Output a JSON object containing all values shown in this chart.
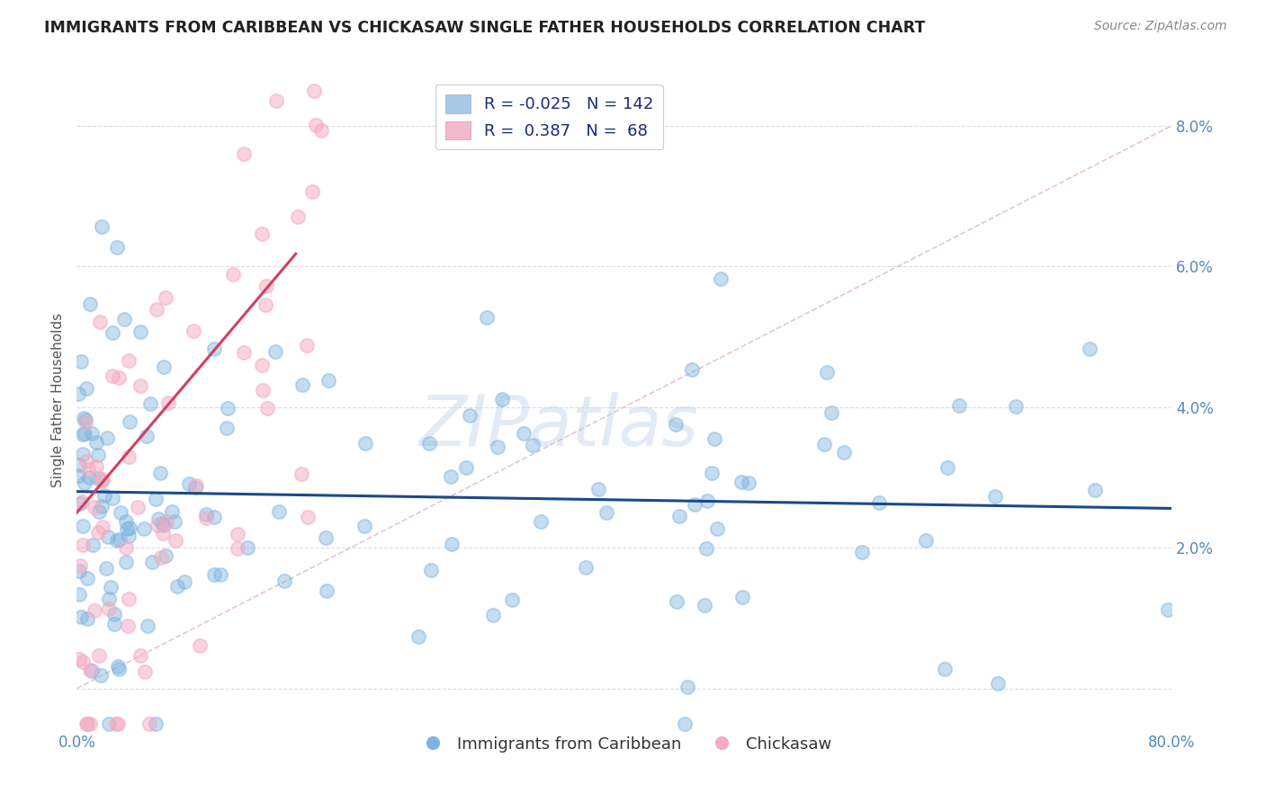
{
  "title": "IMMIGRANTS FROM CARIBBEAN VS CHICKASAW SINGLE FATHER HOUSEHOLDS CORRELATION CHART",
  "source": "Source: ZipAtlas.com",
  "ylabel": "Single Father Households",
  "x_min": 0.0,
  "x_max": 0.8,
  "y_min": -0.006,
  "y_max": 0.088,
  "y_tick_positions": [
    0.0,
    0.02,
    0.04,
    0.06,
    0.08
  ],
  "y_tick_labels_right": [
    "",
    "2.0%",
    "4.0%",
    "6.0%",
    "8.0%"
  ],
  "x_tick_positions": [
    0.0,
    0.1,
    0.2,
    0.3,
    0.4,
    0.5,
    0.6,
    0.7,
    0.8
  ],
  "x_tick_labels": [
    "0.0%",
    "",
    "",
    "",
    "",
    "",
    "",
    "",
    "80.0%"
  ],
  "blue_color": "#7fb4e0",
  "pink_color": "#f4aac0",
  "blue_line_color": "#1a4a8a",
  "pink_line_color": "#d04060",
  "diag_color": "#e0b8c0",
  "watermark": "ZIPatlas",
  "legend_label_blue": "Immigrants from Caribbean",
  "legend_label_pink": "Chickasaw",
  "blue_R": -0.025,
  "blue_N": 142,
  "pink_R": 0.387,
  "pink_N": 68,
  "blue_legend_color": "#a8c8e8",
  "pink_legend_color": "#f4b8cc",
  "background_color": "#ffffff",
  "grid_color": "#dddddd",
  "tick_color": "#5588bb",
  "title_color": "#222222",
  "source_color": "#888888",
  "ylabel_color": "#555555"
}
